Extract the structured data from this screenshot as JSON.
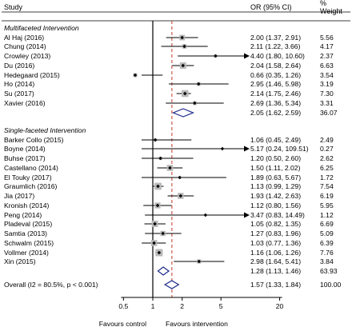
{
  "header": {
    "study": "Study",
    "or_ci": "OR (95% CI)",
    "weight_line1": "%",
    "weight_line2": "Weight"
  },
  "chart_data": {
    "type": "forest",
    "x_scale": "log",
    "xlim": [
      0.3,
      60
    ],
    "x_ticks": [
      0.5,
      1,
      2,
      5,
      20
    ],
    "x_tick_labels": [
      "0.5",
      "1",
      "2",
      "5",
      "20"
    ],
    "null_line": 1,
    "overall_line": 1.57,
    "left_label": "Favours control",
    "right_label": "Favours intervention",
    "groups": [
      {
        "title": "Multifaceted Intervention",
        "studies": [
          {
            "name": "Al Haj (2016)",
            "or": 2.0,
            "lo": 1.37,
            "hi": 2.91,
            "text": "2.00 (1.37, 2.91)",
            "weight": "5.56"
          },
          {
            "name": "Chung (2014)",
            "or": 2.11,
            "lo": 1.22,
            "hi": 3.66,
            "text": "2.11 (1.22, 3.66)",
            "weight": "4.17"
          },
          {
            "name": "Crowley (2013)",
            "or": 4.4,
            "lo": 1.8,
            "hi": 10.6,
            "text": "4.40 (1.80, 10.60)",
            "weight": "2.37"
          },
          {
            "name": "Du (2016)",
            "or": 2.04,
            "lo": 1.58,
            "hi": 2.64,
            "text": "2.04 (1.58, 2.64)",
            "weight": "6.63"
          },
          {
            "name": "Hedegaard (2015)",
            "or": 0.66,
            "lo": 0.35,
            "hi": 1.26,
            "text": "0.66 (0.35, 1.26)",
            "weight": "3.54"
          },
          {
            "name": "Ho (2014)",
            "or": 2.95,
            "lo": 1.46,
            "hi": 5.98,
            "text": "2.95 (1.46, 5.98)",
            "weight": "3.19"
          },
          {
            "name": "Su (2017)",
            "or": 2.14,
            "lo": 1.75,
            "hi": 2.46,
            "text": "2.14 (1.75, 2.46)",
            "weight": "7.30"
          },
          {
            "name": "Xavier (2016)",
            "or": 2.69,
            "lo": 1.36,
            "hi": 5.34,
            "text": "2.69 (1.36, 5.34)",
            "weight": "3.31"
          }
        ],
        "subtotal": {
          "or": 2.05,
          "lo": 1.62,
          "hi": 2.59,
          "text": "2.05 (1.62, 2.59)",
          "weight": "36.07"
        }
      },
      {
        "title": "Single-faceted Intervention",
        "studies": [
          {
            "name": "Barker Collo (2015)",
            "or": 1.06,
            "lo": 0.45,
            "hi": 2.49,
            "text": "1.06 (0.45, 2.49)",
            "weight": "2.49"
          },
          {
            "name": "Boyne (2014)",
            "or": 5.17,
            "lo": 0.24,
            "hi": 109.51,
            "text": "5.17 (0.24, 109.51)",
            "weight": "0.27"
          },
          {
            "name": "Buhse (2017)",
            "or": 1.2,
            "lo": 0.5,
            "hi": 2.6,
            "text": "1.20 (0.50, 2.60)",
            "weight": "2.62"
          },
          {
            "name": "Castellano (2014)",
            "or": 1.5,
            "lo": 1.11,
            "hi": 2.02,
            "text": "1.50 (1.11, 2.02)",
            "weight": "6.25"
          },
          {
            "name": "El Touky (2017)",
            "or": 1.89,
            "lo": 0.63,
            "hi": 5.67,
            "text": "1.89 (0.63, 5.67)",
            "weight": "1.72"
          },
          {
            "name": "Graumlich (2016)",
            "or": 1.13,
            "lo": 0.99,
            "hi": 1.29,
            "text": "1.13 (0.99, 1.29)",
            "weight": "7.54"
          },
          {
            "name": "Jia (2017)",
            "or": 1.93,
            "lo": 1.42,
            "hi": 2.63,
            "text": "1.93 (1.42, 2.63)",
            "weight": "6.19"
          },
          {
            "name": "Kronish (2014)",
            "or": 1.12,
            "lo": 0.8,
            "hi": 1.56,
            "text": "1.12 (0.80, 1.56)",
            "weight": "5.95"
          },
          {
            "name": "Peng (2014)",
            "or": 3.47,
            "lo": 0.83,
            "hi": 14.49,
            "text": "3.47 (0.83, 14.49)",
            "weight": "1.12"
          },
          {
            "name": "Pladeval (2015)",
            "or": 1.05,
            "lo": 0.82,
            "hi": 1.35,
            "text": "1.05 (0.82, 1.35)",
            "weight": "6.69"
          },
          {
            "name": "Samtia (2013)",
            "or": 1.27,
            "lo": 0.83,
            "hi": 1.96,
            "text": "1.27 (0.83, 1.96)",
            "weight": "5.09"
          },
          {
            "name": "Schwalm (2015)",
            "or": 1.03,
            "lo": 0.77,
            "hi": 1.36,
            "text": "1.03 (0.77, 1.36)",
            "weight": "6.39"
          },
          {
            "name": "Vollmer (2014)",
            "or": 1.16,
            "lo": 1.06,
            "hi": 1.26,
            "text": "1.16 (1.06, 1.26)",
            "weight": "7.76"
          },
          {
            "name": "Xin (2015)",
            "or": 2.98,
            "lo": 1.64,
            "hi": 5.41,
            "text": "2.98 (1.64, 5.41)",
            "weight": "3.84"
          }
        ],
        "subtotal": {
          "or": 1.28,
          "lo": 1.13,
          "hi": 1.46,
          "text": "1.28 (1.13, 1.46)",
          "weight": "63.93"
        }
      }
    ],
    "overall": {
      "label": "Overall  (I2 = 80.5%, p < 0.001)",
      "or": 1.57,
      "lo": 1.33,
      "hi": 1.84,
      "text": "1.57 (1.33, 1.84)",
      "weight": "100.00"
    }
  }
}
